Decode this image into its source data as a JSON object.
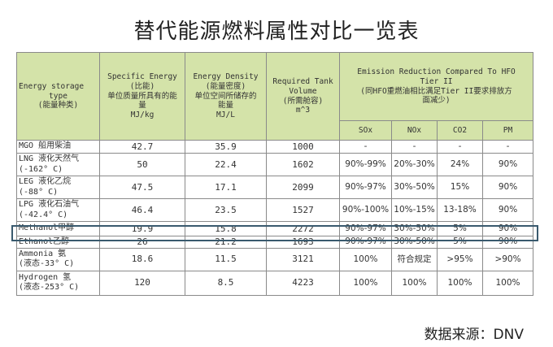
{
  "title": "替代能源燃料属性对比一览表",
  "headers": {
    "energy_type": [
      "Energy storage",
      "type",
      "(能量种类)"
    ],
    "specific_energy": [
      "Specific Energy",
      "(比能)",
      "单位质量所具有的能",
      "量",
      "MJ/kg"
    ],
    "energy_density": [
      "Energy Density",
      "(能量密度)",
      "单位空间所储存的",
      "能量",
      "MJ/L"
    ],
    "tank_volume": [
      "Required Tank",
      "Volume",
      "(所需舱容)",
      "m^3"
    ],
    "emission": [
      "Emission Reduction Compared To HFO",
      "Tier II",
      "(同HFO重燃油相比满足Tier II要求排放方",
      "面减少)"
    ],
    "sox": "SOx",
    "nox": "NOx",
    "co2": "CO2",
    "pm": "PM"
  },
  "rows": [
    {
      "name": [
        "MGO 船用柴油"
      ],
      "se": "42.7",
      "ed": "35.9",
      "tv": "1000",
      "sox": "-",
      "nox": "-",
      "co2": "-",
      "pm": "-"
    },
    {
      "name": [
        "LNG 液化天然气",
        "(-162° C)"
      ],
      "se": "50",
      "ed": "22.4",
      "tv": "1602",
      "sox": "90%-99%",
      "nox": "20%-30%",
      "co2": "24%",
      "pm": "90%"
    },
    {
      "name": [
        "LEG 液化乙烷",
        "(-88° C)"
      ],
      "se": "47.5",
      "ed": "17.1",
      "tv": "2099",
      "sox": "90%-97%",
      "nox": "30%-50%",
      "co2": "15%",
      "pm": "90%"
    },
    {
      "name": [
        "LPG 液化石油气",
        "(-42.4° C)"
      ],
      "se": "46.4",
      "ed": "23.5",
      "tv": "1527",
      "sox": "90%-100%",
      "nox": "10%-15%",
      "co2": "13-18%",
      "pm": "90%"
    },
    {
      "name": [
        "Methanol甲醇"
      ],
      "se": "19.9",
      "ed": "15.8",
      "tv": "2272",
      "sox": "90%-97%",
      "nox": "30%-50%",
      "co2": "5%",
      "pm": "90%"
    },
    {
      "name": [
        "Ethanol乙醇"
      ],
      "se": "26",
      "ed": "21.2",
      "tv": "1693",
      "sox": "90%-97%",
      "nox": "30%-50%",
      "co2": "5%",
      "pm": "90%"
    },
    {
      "name": [
        "Ammonia 氨",
        "(液态-33° C)"
      ],
      "se": "18.6",
      "ed": "11.5",
      "tv": "3121",
      "sox": "100%",
      "nox": "符合规定",
      "co2": ">95%",
      "pm": ">90%"
    },
    {
      "name": [
        "Hydrogen 氢",
        "(液态-253° C)"
      ],
      "se": "120",
      "ed": "8.5",
      "tv": "4223",
      "sox": "100%",
      "nox": "100%",
      "co2": "100%",
      "pm": "100%"
    }
  ],
  "source": "数据来源：DNV",
  "colors": {
    "header_bg": "#d4e3a9",
    "highlight_border": "#3a5a6e",
    "grid": "#8a8a8a"
  }
}
